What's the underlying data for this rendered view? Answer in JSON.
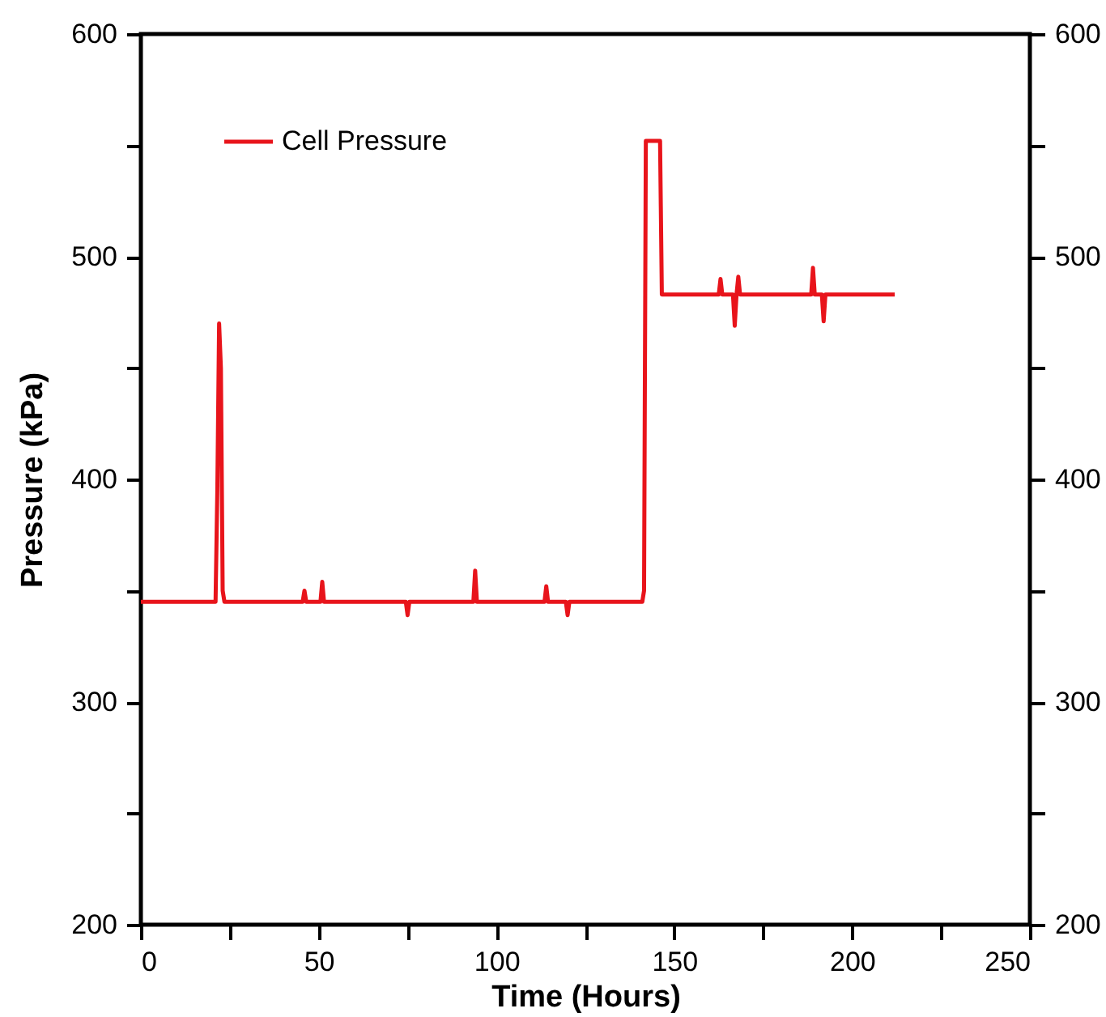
{
  "chart_data": {
    "type": "line",
    "xlabel": "Time (Hours)",
    "ylabel": "Pressure (kPa)",
    "series": [
      {
        "name": "Cell Pressure",
        "color": "#e8141b",
        "x": [
          0,
          10,
          21,
          21.5,
          22,
          22.5,
          23,
          23.5,
          30,
          45.5,
          46,
          46.5,
          50.5,
          51,
          51.5,
          60,
          74.5,
          75,
          75.5,
          85,
          93.5,
          94,
          94.5,
          105,
          113.5,
          114,
          114.5,
          119.5,
          120,
          120.5,
          130,
          141,
          141.5,
          142,
          142.5,
          145,
          146,
          146.5,
          147,
          155,
          162.5,
          163,
          163.5,
          166.5,
          167,
          167.5,
          168,
          168.5,
          175,
          188.5,
          189,
          189.5,
          191.5,
          192,
          192.5,
          200,
          212
        ],
        "values": [
          345,
          345,
          345,
          395,
          470,
          450,
          350,
          345,
          345,
          345,
          350,
          345,
          345,
          354,
          345,
          345,
          345,
          339,
          345,
          345,
          345,
          359,
          345,
          345,
          345,
          352,
          345,
          345,
          339,
          345,
          345,
          345,
          350,
          552,
          552,
          552,
          552,
          483,
          483,
          483,
          483,
          490,
          483,
          483,
          469,
          483,
          491,
          483,
          483,
          483,
          495,
          483,
          483,
          471,
          483,
          483,
          483
        ]
      }
    ],
    "xlim": [
      0,
      250
    ],
    "xticks": [
      0,
      {
        "value": 25,
        "label": null
      },
      50,
      {
        "value": 75,
        "label": null
      },
      100,
      {
        "value": 125,
        "label": null
      },
      150,
      {
        "value": 175,
        "label": null
      },
      200,
      {
        "value": 225,
        "label": null
      },
      250
    ],
    "ylim": [
      200,
      600
    ],
    "yticks": [
      200,
      {
        "value": 250,
        "label": null
      },
      300,
      {
        "value": 350,
        "label": null
      },
      400,
      {
        "value": 450,
        "label": null
      },
      500,
      {
        "value": 550,
        "label": null
      },
      600
    ],
    "y2lim": [
      200,
      600
    ],
    "y2ticks": [
      200,
      {
        "value": 250,
        "label": null
      },
      300,
      {
        "value": 350,
        "label": null
      },
      400,
      {
        "value": 450,
        "label": null
      },
      500,
      {
        "value": 550,
        "label": null
      },
      600
    ],
    "legend": "top left",
    "grid": false,
    "marker": "none",
    "line_style": "solid"
  }
}
